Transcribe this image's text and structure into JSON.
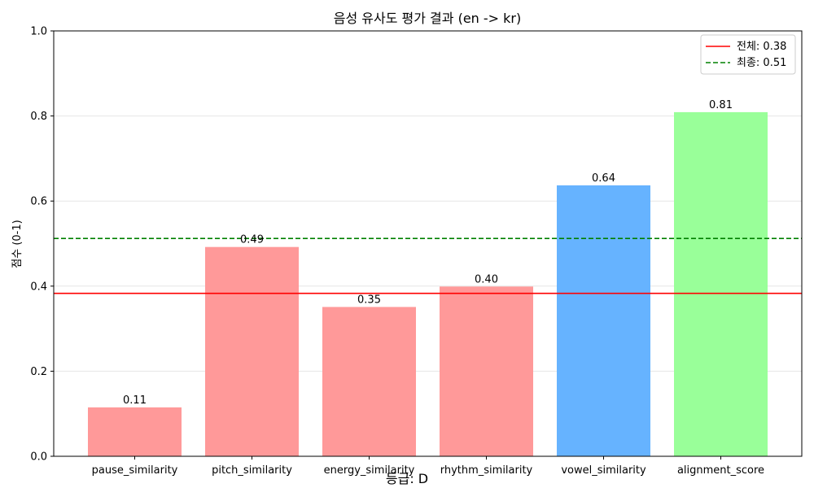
{
  "chart_data": {
    "type": "bar",
    "title": "음성 유사도 평가 결과 (en -> kr)",
    "xlabel": "",
    "ylabel": "점수 (0-1)",
    "ylim": [
      0,
      1.0
    ],
    "yticks": [
      "0.0",
      "0.2",
      "0.4",
      "0.6",
      "0.8",
      "1.0"
    ],
    "ytick_values": [
      0,
      0.2,
      0.4,
      0.6,
      0.8,
      1.0
    ],
    "categories": [
      "pause_similarity",
      "pitch_similarity",
      "energy_similarity",
      "rhythm_similarity",
      "vowel_similarity",
      "alignment_score"
    ],
    "values": [
      0.115,
      0.492,
      0.351,
      0.399,
      0.637,
      0.809
    ],
    "value_labels": [
      "0.11",
      "0.49",
      "0.35",
      "0.40",
      "0.64",
      "0.81"
    ],
    "bar_colors": [
      "#ff9999",
      "#ff9999",
      "#ff9999",
      "#ff9999",
      "#66b3ff",
      "#99ff99"
    ],
    "grid": "horizontal",
    "reference_lines": [
      {
        "label": "전체: 0.38",
        "value": 0.383,
        "color": "#ff0000",
        "style": "solid"
      },
      {
        "label": "최종: 0.51",
        "value": 0.512,
        "color": "#008000",
        "style": "dashed"
      }
    ],
    "legend_position": "top-right",
    "footer_text": "등급: D"
  }
}
